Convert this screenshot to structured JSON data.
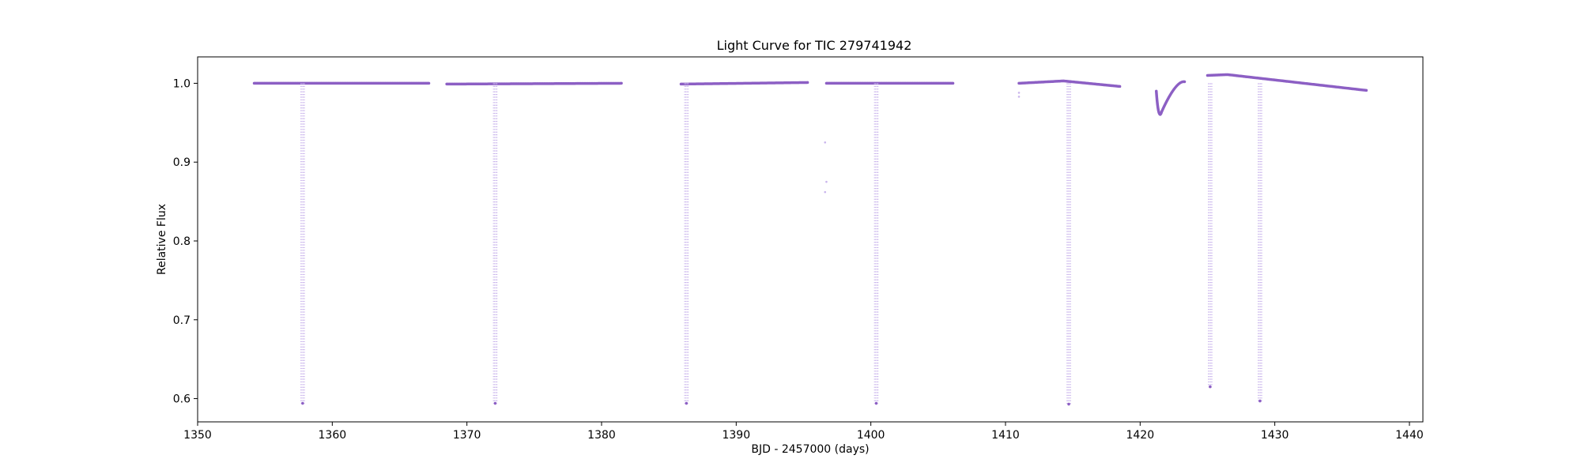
{
  "chart_data": {
    "type": "scatter",
    "title": "Light Curve for TIC 279741942",
    "xlabel": "BJD - 2457000 (days)",
    "ylabel": "Relative Flux",
    "xlim": [
      1350,
      1441
    ],
    "ylim": [
      0.5705,
      1.0335
    ],
    "xticks": [
      1350,
      1360,
      1370,
      1380,
      1390,
      1400,
      1410,
      1420,
      1430,
      1440
    ],
    "yticks": [
      0.6,
      0.7,
      0.8,
      0.9,
      1.0
    ],
    "ytick_labels": [
      "0.6",
      "0.7",
      "0.8",
      "0.9",
      "1.0"
    ],
    "grid": false,
    "colors": {
      "points": "#8c5fc4",
      "in_transit": "#c9b4ec"
    },
    "segments": [
      {
        "x": [
          1354.2,
          1367.2
        ],
        "y": [
          1.0,
          1.0
        ]
      },
      {
        "x": [
          1368.5,
          1381.5
        ],
        "y": [
          0.999,
          1.0
        ]
      },
      {
        "x": [
          1385.9,
          1395.3
        ],
        "y": [
          0.999,
          1.001
        ]
      },
      {
        "x": [
          1396.7,
          1406.1
        ],
        "y": [
          1.0,
          1.0
        ]
      },
      {
        "x": [
          1411.0,
          1418.5
        ],
        "y": [
          1.0,
          0.996
        ],
        "peak": {
          "x": 1414.3,
          "y": 1.003
        }
      },
      {
        "x": [
          1425.0,
          1436.8
        ],
        "y": [
          1.01,
          0.991
        ],
        "peak": {
          "x": 1426.5,
          "y": 1.011
        }
      }
    ],
    "dips": [
      {
        "x": 1421.6,
        "y": 0.964,
        "x_range": [
          1421.2,
          1423.3
        ],
        "y_start": 0.99,
        "y_end": 1.002
      }
    ],
    "transits": [
      {
        "x": 1357.8,
        "depth_min": 0.594
      },
      {
        "x": 1372.1,
        "depth_min": 0.594
      },
      {
        "x": 1386.3,
        "depth_min": 0.594
      },
      {
        "x": 1400.4,
        "depth_min": 0.594
      },
      {
        "x": 1414.7,
        "depth_min": 0.593
      },
      {
        "x": 1425.2,
        "depth_min": 0.615
      },
      {
        "x": 1428.9,
        "depth_min": 0.597
      }
    ],
    "outliers": [
      {
        "x": 1396.6,
        "y": 0.862
      },
      {
        "x": 1396.7,
        "y": 0.875
      },
      {
        "x": 1396.6,
        "y": 0.925
      },
      {
        "x": 1411.0,
        "y": 0.983
      },
      {
        "x": 1411.0,
        "y": 0.988
      }
    ]
  }
}
